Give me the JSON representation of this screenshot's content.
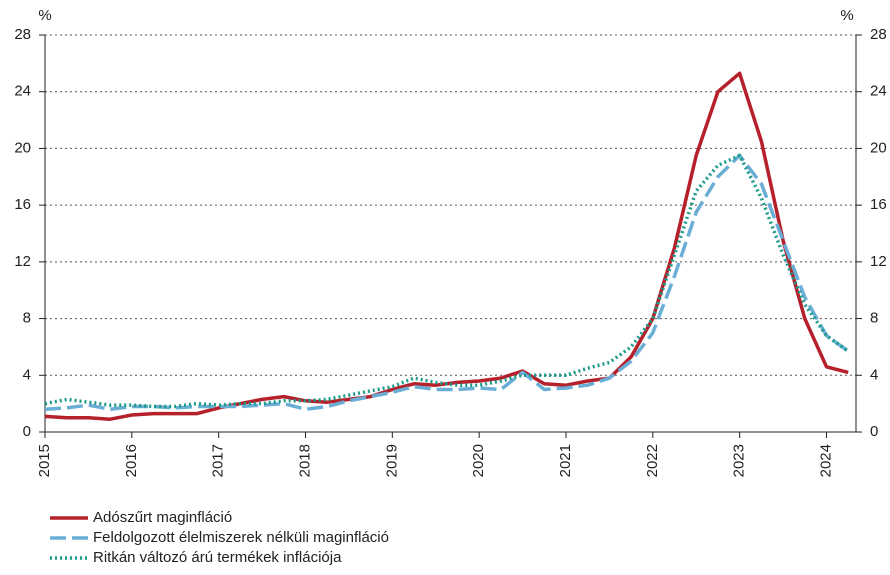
{
  "chart_data": {
    "type": "line",
    "ylabel": "%",
    "y2label": "%",
    "x": [
      2015,
      2015.25,
      2015.5,
      2015.75,
      2016,
      2016.25,
      2016.5,
      2016.75,
      2017,
      2017.25,
      2017.5,
      2017.75,
      2018,
      2018.25,
      2018.5,
      2018.75,
      2019,
      2019.25,
      2019.5,
      2019.75,
      2020,
      2020.25,
      2020.5,
      2020.75,
      2021,
      2021.25,
      2021.5,
      2021.75,
      2022,
      2022.25,
      2022.5,
      2022.75,
      2023,
      2023.25,
      2023.5,
      2023.75,
      2024,
      2024.25
    ],
    "series": [
      {
        "name": "Adószűrt maginfláció",
        "color": "#b5202a",
        "style": "solid",
        "values": [
          1.1,
          1.0,
          1.0,
          0.9,
          1.2,
          1.3,
          1.3,
          1.3,
          1.7,
          2.0,
          2.3,
          2.5,
          2.2,
          2.1,
          2.3,
          2.5,
          3.0,
          3.4,
          3.3,
          3.5,
          3.6,
          3.8,
          4.3,
          3.4,
          3.3,
          3.6,
          3.8,
          5.3,
          8.0,
          13,
          19.5,
          24,
          25.3,
          20.5,
          13.5,
          8,
          4.6,
          4.2
        ]
      },
      {
        "name": "Feldolgozott élelmiszerek nélküli maginfláció",
        "color": "#6aaed6",
        "style": "dashed",
        "values": [
          1.6,
          1.7,
          1.9,
          1.6,
          1.8,
          1.8,
          1.7,
          1.8,
          1.8,
          1.8,
          1.9,
          2.0,
          1.6,
          1.8,
          2.2,
          2.5,
          2.8,
          3.2,
          3.0,
          3.0,
          3.1,
          3.0,
          4.2,
          3.0,
          3.1,
          3.3,
          3.8,
          5.0,
          7.0,
          11,
          15.5,
          18,
          19.5,
          17.5,
          13.5,
          9.5,
          6.8,
          5.7
        ]
      },
      {
        "name": "Ritkán változó árú termékek inflációja",
        "color": "#1a9a8a",
        "style": "dotted",
        "values": [
          2.0,
          2.3,
          2.1,
          1.9,
          1.9,
          1.8,
          1.8,
          2.0,
          1.9,
          2.0,
          2.0,
          2.2,
          2.2,
          2.3,
          2.6,
          2.9,
          3.2,
          3.8,
          3.5,
          3.3,
          3.3,
          3.6,
          4.0,
          4.0,
          4.0,
          4.5,
          4.9,
          6.0,
          8.0,
          12.5,
          17,
          18.8,
          19.5,
          16.5,
          12.5,
          9.0,
          6.8,
          5.7
        ]
      }
    ],
    "xlim": [
      2015,
      2024.34
    ],
    "xticks": [
      2015,
      2016,
      2017,
      2018,
      2019,
      2020,
      2021,
      2022,
      2023,
      2024
    ],
    "ylim": [
      0,
      28
    ],
    "yticks": [
      0,
      4,
      8,
      12,
      16,
      20,
      24,
      28
    ],
    "y2lim": [
      0,
      28
    ],
    "y2ticks": [
      0,
      4,
      8,
      12,
      16,
      20,
      24,
      28
    ],
    "grid": true,
    "legend": "bottom"
  }
}
